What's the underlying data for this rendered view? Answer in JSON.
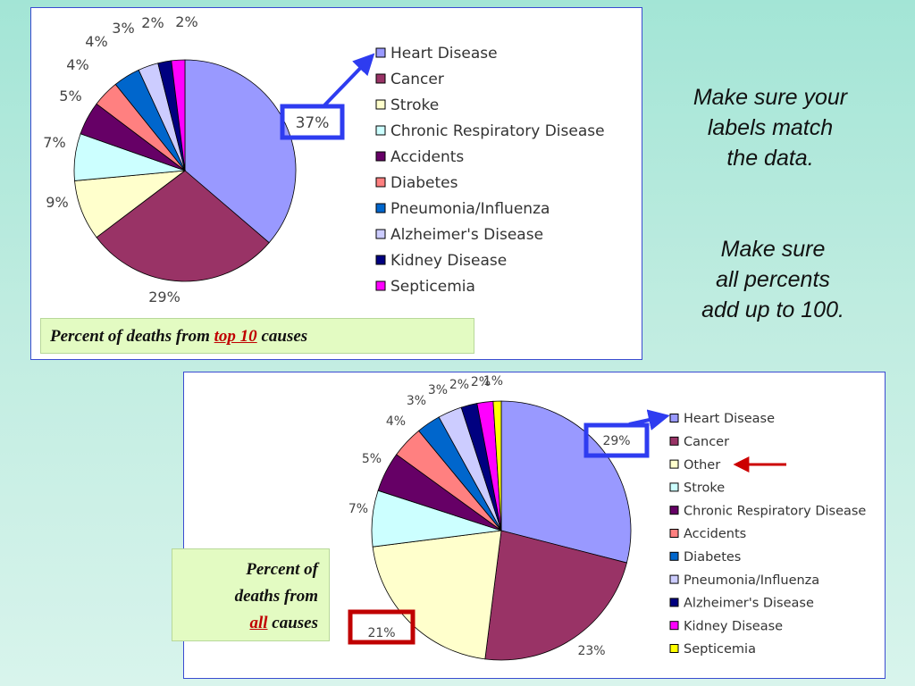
{
  "chart_data": [
    {
      "type": "pie",
      "caption": {
        "prefix": "Percent of deaths  from ",
        "highlight": "top 10",
        "suffix": " causes"
      },
      "slices": [
        {
          "label": "Heart Disease",
          "value": 37,
          "display": "37%",
          "color": "#9999ff"
        },
        {
          "label": "Cancer",
          "value": 29,
          "display": "29%",
          "color": "#993366"
        },
        {
          "label": "Stroke",
          "value": 9,
          "display": "9%",
          "color": "#ffffcc"
        },
        {
          "label": "Chronic Respiratory Disease",
          "value": 7,
          "display": "7%",
          "color": "#ccffff"
        },
        {
          "label": "Accidents",
          "value": 5,
          "display": "5%",
          "color": "#660066"
        },
        {
          "label": "Diabetes",
          "value": 4,
          "display": "4%",
          "color": "#ff8080"
        },
        {
          "label": "Pneumonia/Influenza",
          "value": 4,
          "display": "4%",
          "color": "#0066cc"
        },
        {
          "label": "Alzheimer's Disease",
          "value": 3,
          "display": "3%",
          "color": "#ccccff"
        },
        {
          "label": "Kidney Disease",
          "value": 2,
          "display": "2%",
          "color": "#000080"
        },
        {
          "label": "Septicemia",
          "value": 2,
          "display": "2%",
          "color": "#ff00ff"
        }
      ]
    },
    {
      "type": "pie",
      "caption": {
        "line1": "Percent of",
        "line2": "deaths from",
        "highlight": "all",
        "suffix": " causes"
      },
      "slices": [
        {
          "label": "Heart Disease",
          "value": 29,
          "display": "29%",
          "color": "#9999ff"
        },
        {
          "label": "Cancer",
          "value": 23,
          "display": "23%",
          "color": "#993366"
        },
        {
          "label": "Other",
          "value": 21,
          "display": "21%",
          "color": "#ffffcc"
        },
        {
          "label": "Stroke",
          "value": 7,
          "display": "7%",
          "color": "#ccffff"
        },
        {
          "label": "Chronic Respiratory Disease",
          "value": 5,
          "display": "5%",
          "color": "#660066"
        },
        {
          "label": "Accidents",
          "value": 4,
          "display": "4%",
          "color": "#ff8080"
        },
        {
          "label": "Diabetes",
          "value": 3,
          "display": "3%",
          "color": "#0066cc"
        },
        {
          "label": "Pneumonia/Influenza",
          "value": 3,
          "display": "3%",
          "color": "#ccccff"
        },
        {
          "label": "Alzheimer's Disease",
          "value": 2,
          "display": "2%",
          "color": "#000080"
        },
        {
          "label": "Kidney Disease",
          "value": 2,
          "display": "2%",
          "color": "#ff00ff"
        },
        {
          "label": "Septicemia",
          "value": 1,
          "display": "1%",
          "color": "#ffff00"
        }
      ]
    }
  ],
  "notes": {
    "note1": [
      "Make sure your",
      "labels match",
      "the data."
    ],
    "note2": [
      "Make sure",
      "all percents",
      "add up to 100."
    ]
  },
  "colors": {
    "highlight_box_blue": "#2e3cf0",
    "highlight_box_red": "#c00000",
    "arrow_red": "#cc0000"
  }
}
